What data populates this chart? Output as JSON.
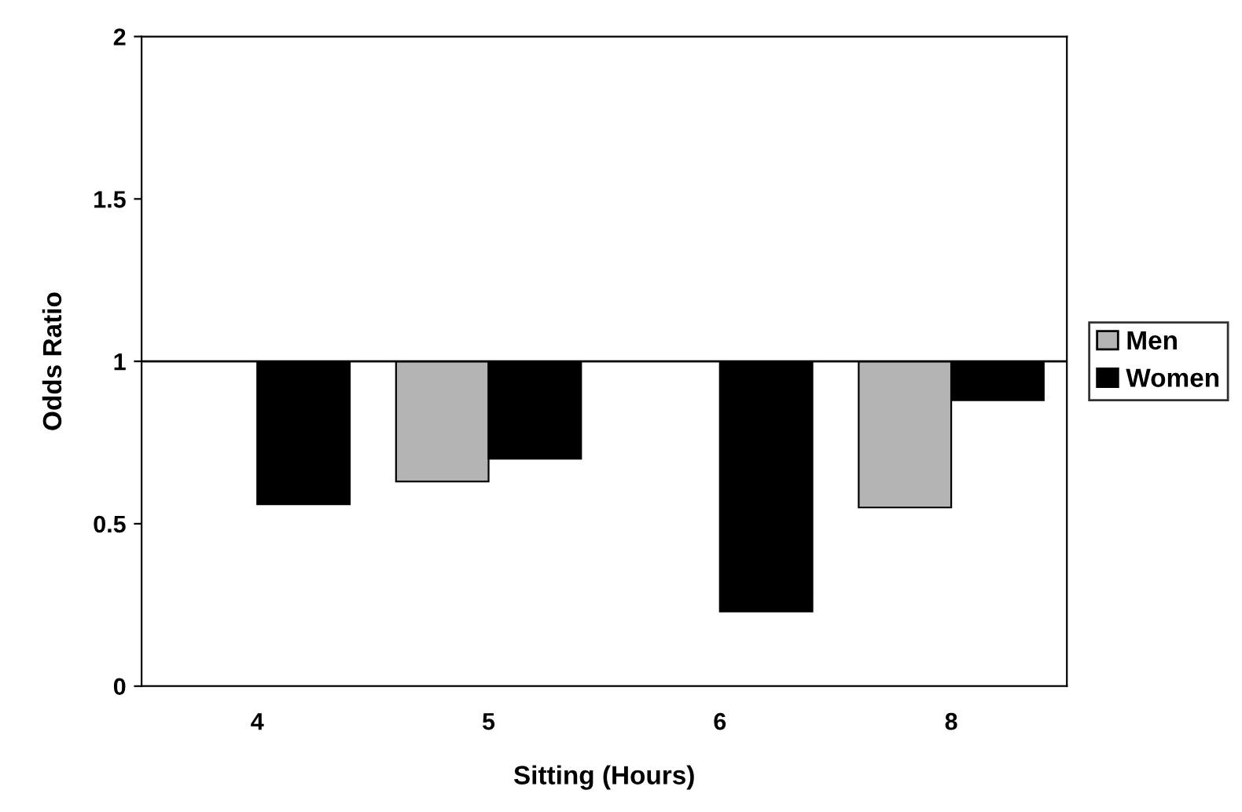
{
  "chart_data": {
    "type": "bar",
    "xlabel": "Sitting (Hours)",
    "ylabel": "Odds Ratio",
    "categories": [
      "4",
      "5",
      "6",
      "8"
    ],
    "series": [
      {
        "name": "Men",
        "color": "#b4b4b4",
        "base": [
          null,
          1,
          null,
          1
        ],
        "values": [
          null,
          -0.37,
          null,
          -0.45
        ]
      },
      {
        "name": "Women",
        "color": "#000000",
        "base": [
          1,
          1,
          1,
          1
        ],
        "values": [
          -0.44,
          -0.3,
          -0.77,
          -0.12
        ]
      }
    ],
    "ylim": [
      0,
      2
    ],
    "yticks": [
      0,
      0.5,
      1,
      1.5,
      2
    ],
    "ref_lines": [
      {
        "axis": "y",
        "value": 1,
        "color": "#000000"
      }
    ],
    "grid": false,
    "legend": "right"
  }
}
